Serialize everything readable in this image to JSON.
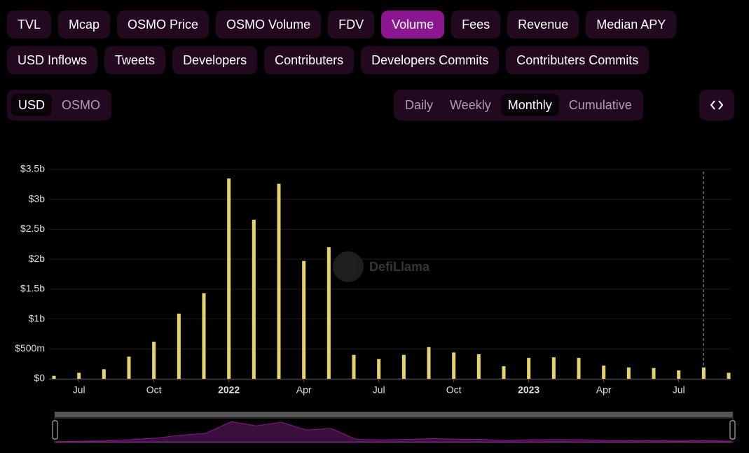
{
  "tabs": {
    "rows": [
      [
        "TVL",
        "Mcap",
        "OSMO Price",
        "OSMO Volume",
        "FDV",
        "Volume",
        "Fees",
        "Revenue",
        "Median APY"
      ],
      [
        "USD Inflows",
        "Tweets",
        "Developers",
        "Contributers",
        "Developers Commits",
        "Contributers Commits"
      ]
    ],
    "active_row": 0,
    "active_index": 5
  },
  "currency": {
    "options": [
      "USD",
      "OSMO"
    ],
    "active_index": 0
  },
  "period": {
    "options": [
      "Daily",
      "Weekly",
      "Monthly",
      "Cumulative"
    ],
    "active_index": 2
  },
  "chart_data": {
    "type": "bar",
    "watermark": "DefiLlama",
    "color": "#e6d46a",
    "grid": true,
    "categories": [
      null,
      "Jul",
      null,
      null,
      "Oct",
      null,
      null,
      "2022",
      null,
      null,
      "Apr",
      null,
      null,
      "Jul",
      null,
      null,
      "Oct",
      null,
      null,
      "2023",
      null,
      null,
      "Apr",
      null,
      null,
      "Jul",
      null,
      null
    ],
    "values": [
      50000000.0,
      100000000.0,
      160000000.0,
      370000000.0,
      620000000.0,
      1090000000.0,
      1430000000.0,
      3350000000.0,
      2660000000.0,
      3260000000.0,
      1970000000.0,
      2200000000.0,
      400000000.0,
      330000000.0,
      400000000.0,
      530000000.0,
      440000000.0,
      410000000.0,
      210000000.0,
      350000000.0,
      360000000.0,
      350000000.0,
      220000000.0,
      190000000.0,
      180000000.0,
      140000000.0,
      190000000.0,
      100000000.0
    ],
    "ylim": [
      0,
      3500000000
    ],
    "yticks": [
      {
        "value": 0,
        "label": "$0"
      },
      {
        "value": 500000000,
        "label": "$500m"
      },
      {
        "value": 1000000000,
        "label": "$1b"
      },
      {
        "value": 1500000000,
        "label": "$1.5b"
      },
      {
        "value": 2000000000,
        "label": "$2b"
      },
      {
        "value": 2500000000,
        "label": "$2.5b"
      },
      {
        "value": 3000000000,
        "label": "$3b"
      },
      {
        "value": 3500000000,
        "label": "$3.5b"
      }
    ]
  }
}
